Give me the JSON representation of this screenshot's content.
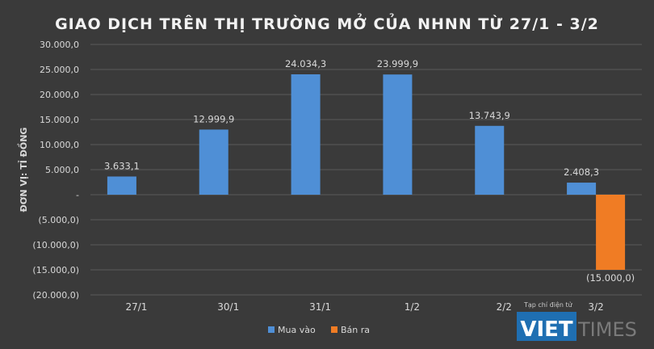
{
  "chart_data": {
    "type": "bar",
    "title": "GIAO DỊCH TRÊN THỊ TRƯỜNG MỞ CỦA NHNN TỪ 27/1 - 3/2",
    "ylabel": "ĐƠN VỊ: TỈ ĐỒNG",
    "xlabel": "",
    "categories": [
      "27/1",
      "30/1",
      "31/1",
      "1/2",
      "2/2",
      "3/2"
    ],
    "series": [
      {
        "name": "Mua vào",
        "color": "#4f8fd6",
        "values": [
          3633.1,
          12999.9,
          24034.3,
          23999.9,
          13743.9,
          2408.3
        ],
        "labels": [
          "3.633,1",
          "12.999,9",
          "24.034,3",
          "23.999,9",
          "13.743,9",
          "2.408,3"
        ]
      },
      {
        "name": "Bán ra",
        "color": "#f07c24",
        "values": [
          null,
          null,
          null,
          null,
          null,
          -15000.0
        ],
        "labels": [
          "",
          "",
          "",
          "",
          "",
          "(15.000,0)"
        ]
      }
    ],
    "ylim": [
      -20000,
      30000
    ],
    "yticks": [
      30000,
      25000,
      20000,
      15000,
      10000,
      5000,
      0,
      -5000,
      -10000,
      -15000,
      -20000
    ],
    "ytick_labels": [
      "30.000,0",
      "25.000,0",
      "20.000,0",
      "15.000,0",
      "10.000,0",
      "5.000,0",
      "-",
      "(5.000,0)",
      "(10.000,0)",
      "(15.000,0)",
      "(20.000,0)"
    ],
    "grid": true,
    "legend": "bottom"
  },
  "watermark": {
    "caption": "Tạp chí điện tử",
    "brand_left": "VIET",
    "brand_right": "TIMES"
  }
}
